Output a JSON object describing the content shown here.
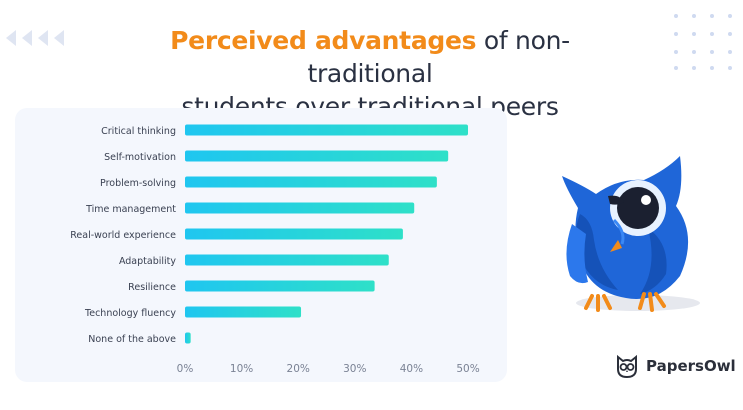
{
  "title": {
    "highlight": "Perceived advantages",
    "rest_line1": " of non-traditional",
    "line2": "students over traditional peers"
  },
  "brand": {
    "name": "PapersOwl",
    "icon": "owl-logo-icon"
  },
  "colors": {
    "accent": "#f28b1a",
    "bar_start": "#1fc6f0",
    "bar_end": "#2ee0c8",
    "text": "#2a3142",
    "panel": "#f4f7fd"
  },
  "chart_data": {
    "type": "bar",
    "orientation": "horizontal",
    "categories": [
      "Critical thinking",
      "Self-motivation",
      "Problem-solving",
      "Time management",
      "Real-world experience",
      "Adaptability",
      "Resilience",
      "Technology fluency",
      "None of the above"
    ],
    "values": [
      50,
      46.5,
      44.5,
      40.5,
      38.5,
      36,
      33.5,
      20.5,
      1
    ],
    "x_ticks": [
      "0%",
      "10%",
      "20%",
      "30%",
      "40%",
      "50%"
    ],
    "xlim": [
      0,
      50
    ],
    "grid": false,
    "legend": "none",
    "title": "Perceived advantages of non-traditional students over traditional peers"
  }
}
